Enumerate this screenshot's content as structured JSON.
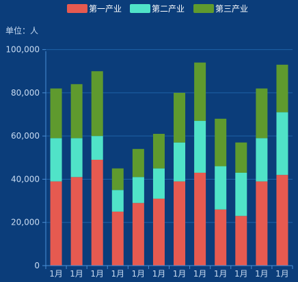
{
  "chart_data": {
    "type": "bar",
    "stacked": true,
    "unit_label": "单位：人",
    "categories": [
      "1月",
      "1月",
      "1月",
      "1月",
      "1月",
      "1月",
      "1月",
      "1月",
      "1月",
      "1月",
      "1月",
      "1月"
    ],
    "series": [
      {
        "name": "第一产业",
        "color": "#e65a50",
        "values": [
          39000,
          41000,
          49000,
          25000,
          29000,
          31000,
          39000,
          43000,
          26000,
          23000,
          39000,
          42000
        ]
      },
      {
        "name": "第二产业",
        "color": "#50e3c8",
        "values": [
          20000,
          18000,
          11000,
          10000,
          12000,
          14000,
          18000,
          24000,
          20000,
          20000,
          20000,
          29000
        ]
      },
      {
        "name": "第三产业",
        "color": "#5f9a2e",
        "values": [
          23000,
          25000,
          30000,
          10000,
          13000,
          16000,
          23000,
          27000,
          22000,
          14000,
          23000,
          22000
        ]
      }
    ],
    "y_ticks": [
      {
        "value": 0,
        "label": "0"
      },
      {
        "value": 20000,
        "label": "20,000"
      },
      {
        "value": 40000,
        "label": "40,000"
      },
      {
        "value": 60000,
        "label": "60,000"
      },
      {
        "value": 80000,
        "label": "80,000"
      },
      {
        "value": 100000,
        "label": "100,000"
      }
    ],
    "ylim": [
      0,
      110000
    ],
    "grid": true,
    "legend_position": "top-center"
  }
}
